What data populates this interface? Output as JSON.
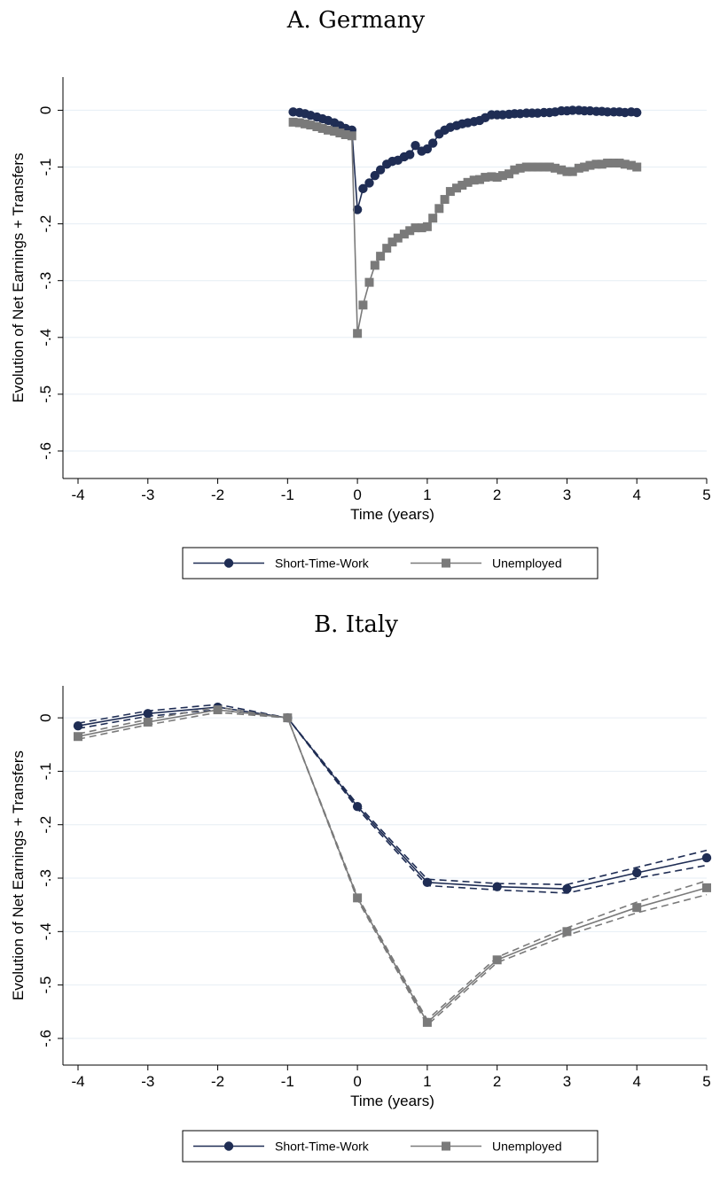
{
  "colors": {
    "stw": "#1f2d54",
    "unemployed": "#7a7a7a",
    "grid": "#e6eef4",
    "axis": "#000000"
  },
  "chart_data": [
    {
      "type": "line",
      "title": "A. Germany",
      "xlabel": "Time (years)",
      "ylabel": "Evolution of Net Earnings + Transfers",
      "xlim": [
        -4,
        5
      ],
      "ylim": [
        -0.6,
        0
      ],
      "xticks": [
        -4,
        -3,
        -2,
        -1,
        0,
        1,
        2,
        3,
        4,
        5
      ],
      "xtick_labels": [
        "-4",
        "-3",
        "-2",
        "-1",
        "0",
        "1",
        "2",
        "3",
        "4",
        "5"
      ],
      "yticks": [
        0,
        -0.1,
        -0.2,
        -0.3,
        -0.4,
        -0.5,
        -0.6
      ],
      "ytick_labels": [
        "0",
        "-.1",
        "-.2",
        "-.3",
        "-.4",
        "-.5",
        "-.6"
      ],
      "grid": true,
      "legend": "bottom",
      "series": [
        {
          "name": "Short-Time-Work",
          "marker": "circle",
          "color_key": "stw",
          "x": [
            -0.92,
            -0.83,
            -0.75,
            -0.67,
            -0.58,
            -0.5,
            -0.42,
            -0.33,
            -0.25,
            -0.17,
            -0.08,
            0.0,
            0.08,
            0.17,
            0.25,
            0.33,
            0.42,
            0.5,
            0.58,
            0.67,
            0.75,
            0.83,
            0.92,
            1.0,
            1.08,
            1.17,
            1.25,
            1.33,
            1.42,
            1.5,
            1.58,
            1.67,
            1.75,
            1.83,
            1.92,
            2.0,
            2.08,
            2.17,
            2.25,
            2.33,
            2.42,
            2.5,
            2.58,
            2.67,
            2.75,
            2.83,
            2.92,
            3.0,
            3.08,
            3.17,
            3.25,
            3.33,
            3.42,
            3.5,
            3.58,
            3.67,
            3.75,
            3.83,
            3.92,
            4.0
          ],
          "y": [
            -0.003,
            -0.004,
            -0.006,
            -0.009,
            -0.012,
            -0.015,
            -0.018,
            -0.022,
            -0.027,
            -0.032,
            -0.035,
            -0.175,
            -0.138,
            -0.128,
            -0.115,
            -0.105,
            -0.095,
            -0.09,
            -0.088,
            -0.082,
            -0.078,
            -0.062,
            -0.072,
            -0.068,
            -0.058,
            -0.042,
            -0.035,
            -0.03,
            -0.027,
            -0.024,
            -0.022,
            -0.02,
            -0.018,
            -0.013,
            -0.008,
            -0.008,
            -0.008,
            -0.007,
            -0.006,
            -0.006,
            -0.005,
            -0.005,
            -0.005,
            -0.004,
            -0.004,
            -0.003,
            -0.001,
            -0.001,
            0.0,
            0.0,
            -0.001,
            -0.001,
            -0.002,
            -0.002,
            -0.003,
            -0.003,
            -0.003,
            -0.004,
            -0.003,
            -0.004
          ]
        },
        {
          "name": "Unemployed",
          "marker": "square",
          "color_key": "unemployed",
          "x": [
            -0.92,
            -0.83,
            -0.75,
            -0.67,
            -0.58,
            -0.5,
            -0.42,
            -0.33,
            -0.25,
            -0.17,
            -0.08,
            0.0,
            0.08,
            0.17,
            0.25,
            0.33,
            0.42,
            0.5,
            0.58,
            0.67,
            0.75,
            0.83,
            0.92,
            1.0,
            1.08,
            1.17,
            1.25,
            1.33,
            1.42,
            1.5,
            1.58,
            1.67,
            1.75,
            1.83,
            1.92,
            2.0,
            2.08,
            2.17,
            2.25,
            2.33,
            2.42,
            2.5,
            2.58,
            2.67,
            2.75,
            2.83,
            2.92,
            3.0,
            3.08,
            3.17,
            3.25,
            3.33,
            3.42,
            3.5,
            3.58,
            3.67,
            3.75,
            3.83,
            3.92,
            4.0
          ],
          "y": [
            -0.021,
            -0.022,
            -0.024,
            -0.026,
            -0.029,
            -0.032,
            -0.035,
            -0.037,
            -0.04,
            -0.043,
            -0.045,
            -0.393,
            -0.343,
            -0.303,
            -0.273,
            -0.257,
            -0.243,
            -0.232,
            -0.225,
            -0.218,
            -0.212,
            -0.207,
            -0.207,
            -0.205,
            -0.19,
            -0.173,
            -0.157,
            -0.143,
            -0.137,
            -0.132,
            -0.127,
            -0.123,
            -0.122,
            -0.118,
            -0.117,
            -0.118,
            -0.115,
            -0.112,
            -0.105,
            -0.102,
            -0.1,
            -0.1,
            -0.1,
            -0.1,
            -0.1,
            -0.102,
            -0.105,
            -0.108,
            -0.108,
            -0.102,
            -0.1,
            -0.097,
            -0.095,
            -0.095,
            -0.093,
            -0.093,
            -0.093,
            -0.095,
            -0.097,
            -0.1
          ]
        }
      ]
    },
    {
      "type": "line",
      "title": "B. Italy",
      "xlabel": "Time (years)",
      "ylabel": "Evolution of Net Earnings + Transfers",
      "xlim": [
        -4,
        5
      ],
      "ylim": [
        -0.6,
        0
      ],
      "xticks": [
        -4,
        -3,
        -2,
        -1,
        0,
        1,
        2,
        3,
        4,
        5
      ],
      "xtick_labels": [
        "-4",
        "-3",
        "-2",
        "-1",
        "0",
        "1",
        "2",
        "3",
        "4",
        "5"
      ],
      "yticks": [
        0,
        -0.1,
        -0.2,
        -0.3,
        -0.4,
        -0.5,
        -0.6
      ],
      "ytick_labels": [
        "0",
        "-.1",
        "-.2",
        "-.3",
        "-.4",
        "-.5",
        "-.6"
      ],
      "grid": true,
      "legend": "bottom",
      "series": [
        {
          "name": "Short-Time-Work",
          "marker": "circle",
          "color_key": "stw",
          "x": [
            -4,
            -3,
            -2,
            -1,
            0,
            1,
            2,
            3,
            4,
            5
          ],
          "y": [
            -0.015,
            0.008,
            0.02,
            0.0,
            -0.166,
            -0.308,
            -0.316,
            -0.32,
            -0.29,
            -0.262
          ],
          "ci_upper": [
            -0.01,
            0.013,
            0.025,
            0.0,
            -0.162,
            -0.302,
            -0.31,
            -0.312,
            -0.28,
            -0.248
          ],
          "ci_lower": [
            -0.02,
            0.003,
            0.015,
            0.0,
            -0.17,
            -0.314,
            -0.322,
            -0.328,
            -0.3,
            -0.276
          ]
        },
        {
          "name": "Unemployed",
          "marker": "square",
          "color_key": "unemployed",
          "x": [
            -4,
            -3,
            -2,
            -1,
            0,
            1,
            2,
            3,
            4,
            5
          ],
          "y": [
            -0.035,
            -0.008,
            0.015,
            0.0,
            -0.337,
            -0.57,
            -0.453,
            -0.4,
            -0.355,
            -0.318
          ],
          "ci_upper": [
            -0.03,
            -0.003,
            0.02,
            0.0,
            -0.334,
            -0.565,
            -0.448,
            -0.393,
            -0.345,
            -0.305
          ],
          "ci_lower": [
            -0.04,
            -0.013,
            0.01,
            0.0,
            -0.34,
            -0.575,
            -0.458,
            -0.407,
            -0.365,
            -0.331
          ]
        }
      ]
    }
  ]
}
